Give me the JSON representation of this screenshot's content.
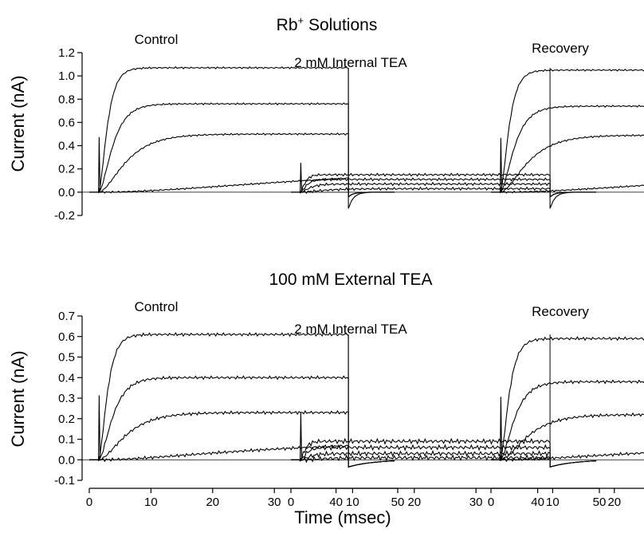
{
  "figure": {
    "top_title": "Rb",
    "top_title_sup": "+",
    "top_title_rest": " Solutions",
    "bottom_title": "100 mM External TEA",
    "xlabel": "Time (msec)"
  },
  "chart_data": [
    {
      "type": "line",
      "row": "Rb+ Solutions",
      "ylabel": "Current (nA)",
      "ylim": [
        -0.2,
        1.2
      ],
      "yticks": [
        "1.2",
        "1.0",
        "0.8",
        "0.6",
        "0.4",
        "0.2",
        "0.0",
        "-0.2"
      ],
      "xlim": [
        0,
        50
      ],
      "panels": [
        {
          "label": "Control",
          "series": [
            {
              "values": {
                "steady": 1.07,
                "tau": 1.1
              }
            },
            {
              "values": {
                "steady": 0.76,
                "tau": 1.8
              }
            },
            {
              "values": {
                "steady": 0.5,
                "tau": 3.5
              }
            },
            {
              "values": {
                "steady": 0.22,
                "tau": 30
              }
            }
          ]
        },
        {
          "label": "2 mM Internal TEA",
          "series": [
            {
              "values": {
                "steady": 0.15,
                "tau": 0.6
              }
            },
            {
              "values": {
                "steady": 0.11,
                "tau": 0.8
              }
            },
            {
              "values": {
                "steady": 0.07,
                "tau": 1.2
              }
            },
            {
              "values": {
                "steady": 0.03,
                "tau": 3
              }
            }
          ]
        },
        {
          "label": "Recovery",
          "series": [
            {
              "values": {
                "steady": 1.05,
                "tau": 1.1
              }
            },
            {
              "values": {
                "steady": 0.74,
                "tau": 1.8
              }
            },
            {
              "values": {
                "steady": 0.49,
                "tau": 3.5
              }
            },
            {
              "values": {
                "steady": 0.2,
                "tau": 30
              }
            }
          ]
        }
      ]
    },
    {
      "type": "line",
      "row": "100 mM External TEA",
      "ylabel": "Current (nA)",
      "ylim": [
        -0.1,
        0.7
      ],
      "yticks": [
        "0.7",
        "0.6",
        "0.5",
        "0.4",
        "0.3",
        "0.2",
        "0.1",
        "0.0",
        "-0.1"
      ],
      "xlim": [
        0,
        50
      ],
      "xticks": [
        "0",
        "10",
        "20",
        "30",
        "40",
        "50"
      ],
      "panels": [
        {
          "label": "Control",
          "series": [
            {
              "values": {
                "steady": 0.61,
                "tau": 1.1
              }
            },
            {
              "values": {
                "steady": 0.4,
                "tau": 1.8
              }
            },
            {
              "values": {
                "steady": 0.23,
                "tau": 3.5
              }
            },
            {
              "values": {
                "steady": 0.09,
                "tau": 20
              }
            }
          ]
        },
        {
          "label": "2 mM Internal TEA",
          "series": [
            {
              "values": {
                "steady": 0.09,
                "tau": 0.6
              }
            },
            {
              "values": {
                "steady": 0.06,
                "tau": 0.8
              }
            },
            {
              "values": {
                "steady": 0.03,
                "tau": 1.2
              }
            },
            {
              "values": {
                "steady": 0.01,
                "tau": 3
              }
            }
          ]
        },
        {
          "label": "Recovery",
          "series": [
            {
              "values": {
                "steady": 0.59,
                "tau": 1.1
              }
            },
            {
              "values": {
                "steady": 0.38,
                "tau": 1.8
              }
            },
            {
              "values": {
                "steady": 0.22,
                "tau": 3.5
              }
            },
            {
              "values": {
                "steady": 0.07,
                "tau": 20
              }
            }
          ]
        }
      ]
    }
  ]
}
